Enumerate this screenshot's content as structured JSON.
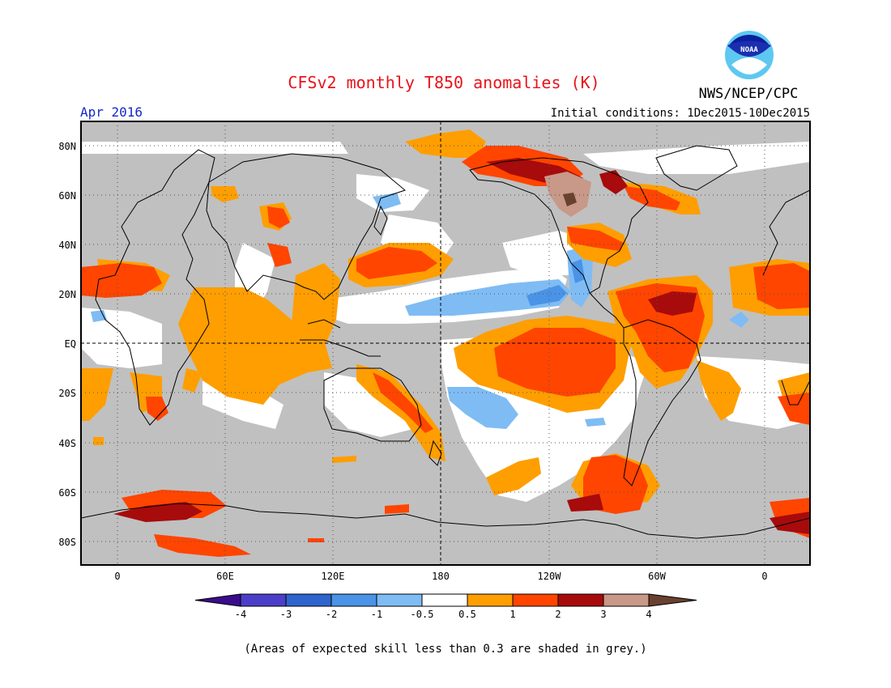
{
  "header": {
    "title": "CFSv2 monthly T850 anomalies (K)",
    "org": "NWS/NCEP/CPC",
    "logo_text": "NOAA",
    "period": "Apr 2016",
    "initial_conditions": "Initial conditions: 1Dec2015-10Dec2015"
  },
  "map": {
    "lat_labels": [
      "80N",
      "60N",
      "40N",
      "20N",
      "EQ",
      "20S",
      "40S",
      "60S",
      "80S"
    ],
    "lon_labels": [
      "0",
      "60E",
      "120E",
      "180",
      "120W",
      "60W",
      "0"
    ]
  },
  "colorbar": {
    "labels": [
      "-4",
      "-3",
      "-2",
      "-1",
      "-0.5",
      "0.5",
      "1",
      "2",
      "3",
      "4"
    ],
    "colors": {
      "below_min": "#3a0c8c",
      "bins": [
        "#4b3fc9",
        "#2f64cc",
        "#4a93e6",
        "#7fbcf4",
        "#ffffff",
        "#ff9e00",
        "#ff4500",
        "#a70b0b",
        "#c89888"
      ],
      "above_max": "#6a4030",
      "skill_mask": "#c0c0c0"
    }
  },
  "footer": {
    "note": "(Areas of expected skill less than 0.3 are shaded in grey.)"
  }
}
